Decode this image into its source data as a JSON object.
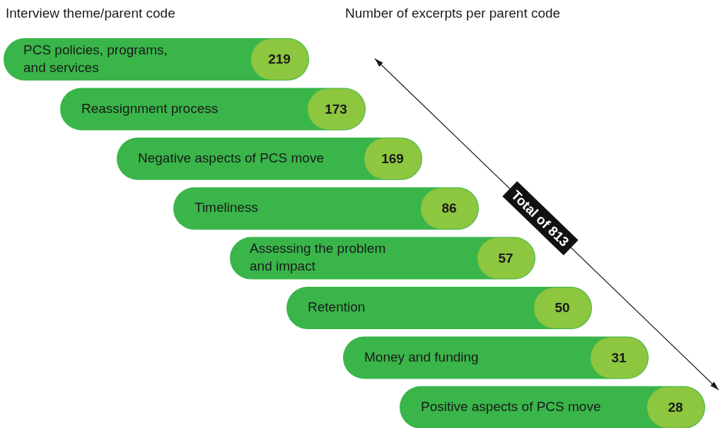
{
  "chart_data": {
    "type": "other",
    "title": "Interview theme/parent code",
    "subtitle": "Number of excerpts per parent code",
    "categories": [
      "PCS policies, programs,\nand services",
      "Reassignment process",
      "Negative aspects of PCS move",
      "Timeliness",
      "Assessing the problem\nand impact",
      "Retention",
      "Money and funding",
      "Positive aspects of PCS move"
    ],
    "values": [
      219,
      173,
      169,
      86,
      57,
      50,
      31,
      28
    ],
    "data_labels": true,
    "color": "#8dc63f",
    "annotations": [
      "Total of 813"
    ]
  }
}
